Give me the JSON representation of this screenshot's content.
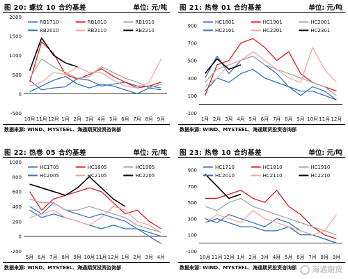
{
  "panels": [
    {
      "fig_label": "图 20:",
      "fig_title": "螺纹 10 合约基差",
      "unit": "单位: 元/吨",
      "source": "数据来源: WIND、MYSTEEL、海通期货投资咨询部"
    },
    {
      "fig_label": "图 21:",
      "fig_title": "热卷 01 合约基差",
      "unit": "单位: 元/吨",
      "source": "数据来源: WIND、MYSTEEL、海通期货投资咨询部"
    },
    {
      "fig_label": "图 22:",
      "fig_title": "热卷 05 合约基差",
      "unit": "单位: 元/吨",
      "source": "数据来源: WIND、MYSTEEL、海通期货投资咨询部"
    },
    {
      "fig_label": "图 23:",
      "fig_title": "热卷 10 合约基差",
      "unit": "单位: 元/吨",
      "source": "数据来源: WIND、MYSTEEL、海通期货投资咨询部"
    }
  ],
  "watermark": "海通期货",
  "chart_data": [
    {
      "type": "line",
      "x": [
        "10月",
        "11月",
        "12月",
        "1月",
        "2月",
        "3月",
        "4月",
        "5月",
        "6月",
        "7月",
        "8月",
        "9月"
      ],
      "ylim": [
        -500,
        2000
      ],
      "yticks": [
        -500,
        0,
        500,
        1000,
        1500,
        2000
      ],
      "legend_placement": "top",
      "series": [
        {
          "name": "RB1710",
          "color": "#4472c4",
          "values": [
            350,
            100,
            150,
            180,
            400,
            350,
            200,
            250,
            300,
            200,
            200,
            150
          ]
        },
        {
          "name": "RB1810",
          "color": "#e31a1c",
          "values": [
            300,
            1350,
            1050,
            500,
            380,
            500,
            650,
            450,
            300,
            150,
            200,
            300
          ]
        },
        {
          "name": "RB1910",
          "color": "#a6a6a6",
          "values": [
            400,
            900,
            700,
            550,
            400,
            450,
            700,
            550,
            400,
            300,
            150,
            250
          ]
        },
        {
          "name": "RB2010",
          "color": "#2e75b6",
          "values": [
            50,
            200,
            350,
            450,
            250,
            150,
            250,
            200,
            100,
            0,
            150,
            100
          ]
        },
        {
          "name": "RB2110",
          "color": "#f4a6a6",
          "values": [
            200,
            300,
            550,
            500,
            700,
            550,
            550,
            350,
            200,
            150,
            300,
            900
          ]
        },
        {
          "name": "RB2210",
          "color": "#000000",
          "values": [
            600,
            1450,
            1000,
            800,
            700,
            null,
            null,
            null,
            null,
            null,
            null,
            null
          ]
        }
      ]
    },
    {
      "type": "line",
      "x": [
        "1月",
        "2月",
        "3月",
        "4月",
        "5月",
        "6月",
        "7月",
        "8月",
        "9月",
        "10月",
        "11月",
        "12月"
      ],
      "ylim": [
        -100,
        1000
      ],
      "yticks": [
        -100,
        100,
        300,
        500,
        700,
        900
      ],
      "legend_placement": "top",
      "series": [
        {
          "name": "HC1801",
          "color": "#4472c4",
          "values": [
            300,
            550,
            350,
            500,
            550,
            450,
            350,
            200,
            100,
            200,
            150,
            50
          ]
        },
        {
          "name": "HC1901",
          "color": "#e31a1c",
          "values": [
            100,
            450,
            500,
            700,
            750,
            650,
            500,
            600,
            350,
            250,
            200,
            150
          ]
        },
        {
          "name": "HC2001",
          "color": "#a6a6a6",
          "values": [
            250,
            400,
            450,
            500,
            550,
            450,
            400,
            350,
            300,
            250,
            200,
            100
          ]
        },
        {
          "name": "HC2101",
          "color": "#2e75b6",
          "values": [
            150,
            300,
            250,
            350,
            400,
            300,
            250,
            200,
            150,
            150,
            100,
            50
          ]
        },
        {
          "name": "HC2201",
          "color": "#f4a6a6",
          "values": [
            200,
            300,
            450,
            500,
            600,
            500,
            400,
            300,
            250,
            650,
            400,
            250
          ]
        },
        {
          "name": "HC2301",
          "color": "#000000",
          "values": [
            350,
            520,
            400,
            450,
            null,
            null,
            null,
            null,
            null,
            null,
            null,
            null
          ]
        }
      ]
    },
    {
      "type": "line",
      "x": [
        "5月",
        "6月",
        "7月",
        "8月",
        "9月",
        "10月",
        "11月",
        "12月",
        "1月",
        "2月",
        "3月",
        "4月"
      ],
      "ylim": [
        -200,
        1000
      ],
      "yticks": [
        -200,
        0,
        200,
        400,
        600,
        800,
        1000
      ],
      "legend_placement": "top",
      "series": [
        {
          "name": "HC1705",
          "color": "#4472c4",
          "values": [
            400,
            300,
            450,
            350,
            300,
            250,
            300,
            250,
            200,
            100,
            0,
            -100
          ]
        },
        {
          "name": "HC1805",
          "color": "#e31a1c",
          "values": [
            600,
            350,
            500,
            550,
            600,
            650,
            600,
            450,
            300,
            350,
            200,
            100
          ]
        },
        {
          "name": "HC1905",
          "color": "#a6a6a6",
          "values": [
            500,
            450,
            450,
            350,
            350,
            400,
            350,
            300,
            250,
            150,
            100,
            50
          ]
        },
        {
          "name": "HC2005",
          "color": "#2e75b6",
          "values": [
            350,
            250,
            300,
            250,
            200,
            150,
            100,
            150,
            100,
            100,
            50,
            0
          ]
        },
        {
          "name": "HC2105",
          "color": "#f4a6a6",
          "values": [
            250,
            300,
            350,
            250,
            200,
            150,
            250,
            400,
            350,
            200,
            150,
            50
          ]
        },
        {
          "name": "HC2205",
          "color": "#000000",
          "values": [
            700,
            650,
            600,
            550,
            650,
            800,
            650,
            500,
            400,
            null,
            null,
            null
          ]
        }
      ]
    },
    {
      "type": "line",
      "x": [
        "10月",
        "11月",
        "12月",
        "1月",
        "2月",
        "3月",
        "4月",
        "5月",
        "6月",
        "7月",
        "8月",
        "9月"
      ],
      "ylim": [
        -100,
        1000
      ],
      "yticks": [
        -100,
        100,
        300,
        500,
        700,
        900
      ],
      "legend_placement": "top",
      "series": [
        {
          "name": "HC1710",
          "color": "#4472c4",
          "values": [
            300,
            250,
            350,
            300,
            250,
            200,
            300,
            250,
            150,
            100,
            50,
            0
          ]
        },
        {
          "name": "HC1810",
          "color": "#e31a1c",
          "values": [
            550,
            550,
            600,
            650,
            550,
            500,
            650,
            450,
            350,
            200,
            100,
            50
          ]
        },
        {
          "name": "HC1910",
          "color": "#a6a6a6",
          "values": [
            450,
            400,
            500,
            550,
            450,
            400,
            350,
            300,
            250,
            200,
            150,
            100
          ]
        },
        {
          "name": "HC2010",
          "color": "#2e75b6",
          "values": [
            250,
            300,
            250,
            200,
            200,
            150,
            150,
            200,
            100,
            100,
            50,
            0
          ]
        },
        {
          "name": "HC2110",
          "color": "#f4a6a6",
          "values": [
            250,
            350,
            300,
            250,
            400,
            300,
            250,
            200,
            150,
            100,
            150,
            350
          ]
        },
        {
          "name": "HC2210",
          "color": "#000000",
          "values": [
            850,
            700,
            550,
            600,
            null,
            null,
            null,
            null,
            null,
            null,
            null,
            null
          ]
        }
      ]
    }
  ]
}
